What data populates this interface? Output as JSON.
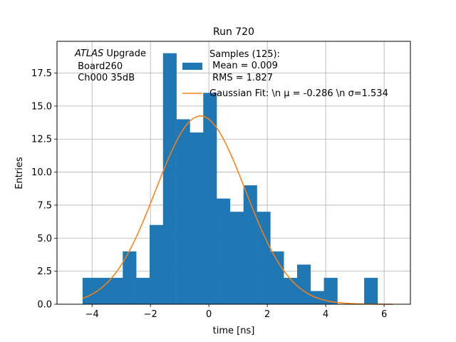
{
  "chart_data": {
    "type": "bar",
    "title": "Run 720",
    "xlabel": "time [ns]",
    "ylabel": "Entries",
    "xlim": [
      -5.2,
      6.9
    ],
    "ylim": [
      0,
      19.9
    ],
    "xticks": [
      -4,
      -2,
      0,
      2,
      4,
      6
    ],
    "xtick_labels": [
      "−4",
      "−2",
      "0",
      "2",
      "4",
      "6"
    ],
    "yticks": [
      0,
      2.5,
      5,
      7.5,
      10,
      12.5,
      15,
      17.5
    ],
    "ytick_labels": [
      "0.0",
      "2.5",
      "5.0",
      "7.5",
      "10.0",
      "12.5",
      "15.0",
      "17.5"
    ],
    "grid": true,
    "annotation": {
      "line1_italic": "ATLAS",
      "line1_rest": " Upgrade",
      "line2": " Board260",
      "line3": " Ch000 35dB"
    },
    "legend": {
      "placement": "upper right",
      "entries": [
        {
          "type": "bar",
          "lines": [
            "Samples (125):",
            " Mean = 0.009",
            " RMS = 1.827"
          ]
        },
        {
          "type": "line",
          "lines": [
            "Gaussian Fit: \\n μ = -0.286 \\n σ=1.534"
          ]
        }
      ]
    },
    "series": [
      {
        "type": "histogram",
        "color": "#1f77b4",
        "bin_edges": [
          -4.325,
          -3.866,
          -3.407,
          -2.948,
          -2.489,
          -2.029,
          -1.57,
          -1.111,
          -0.652,
          -0.193,
          0.266,
          0.725,
          1.185,
          1.644,
          2.103,
          2.562,
          3.021,
          3.48,
          3.939,
          4.399,
          4.858,
          5.317,
          5.776
        ],
        "counts": [
          2,
          2,
          2,
          4,
          2,
          6,
          19,
          14,
          13,
          16,
          8,
          7,
          9,
          7,
          4,
          2,
          3,
          1,
          2,
          0,
          0,
          2
        ]
      },
      {
        "type": "gaussian",
        "color": "#ff7f0e",
        "mu": -0.286,
        "sigma": 1.534,
        "amplitude": 14.25,
        "x_range": [
          -4.325,
          6.3
        ]
      }
    ]
  }
}
